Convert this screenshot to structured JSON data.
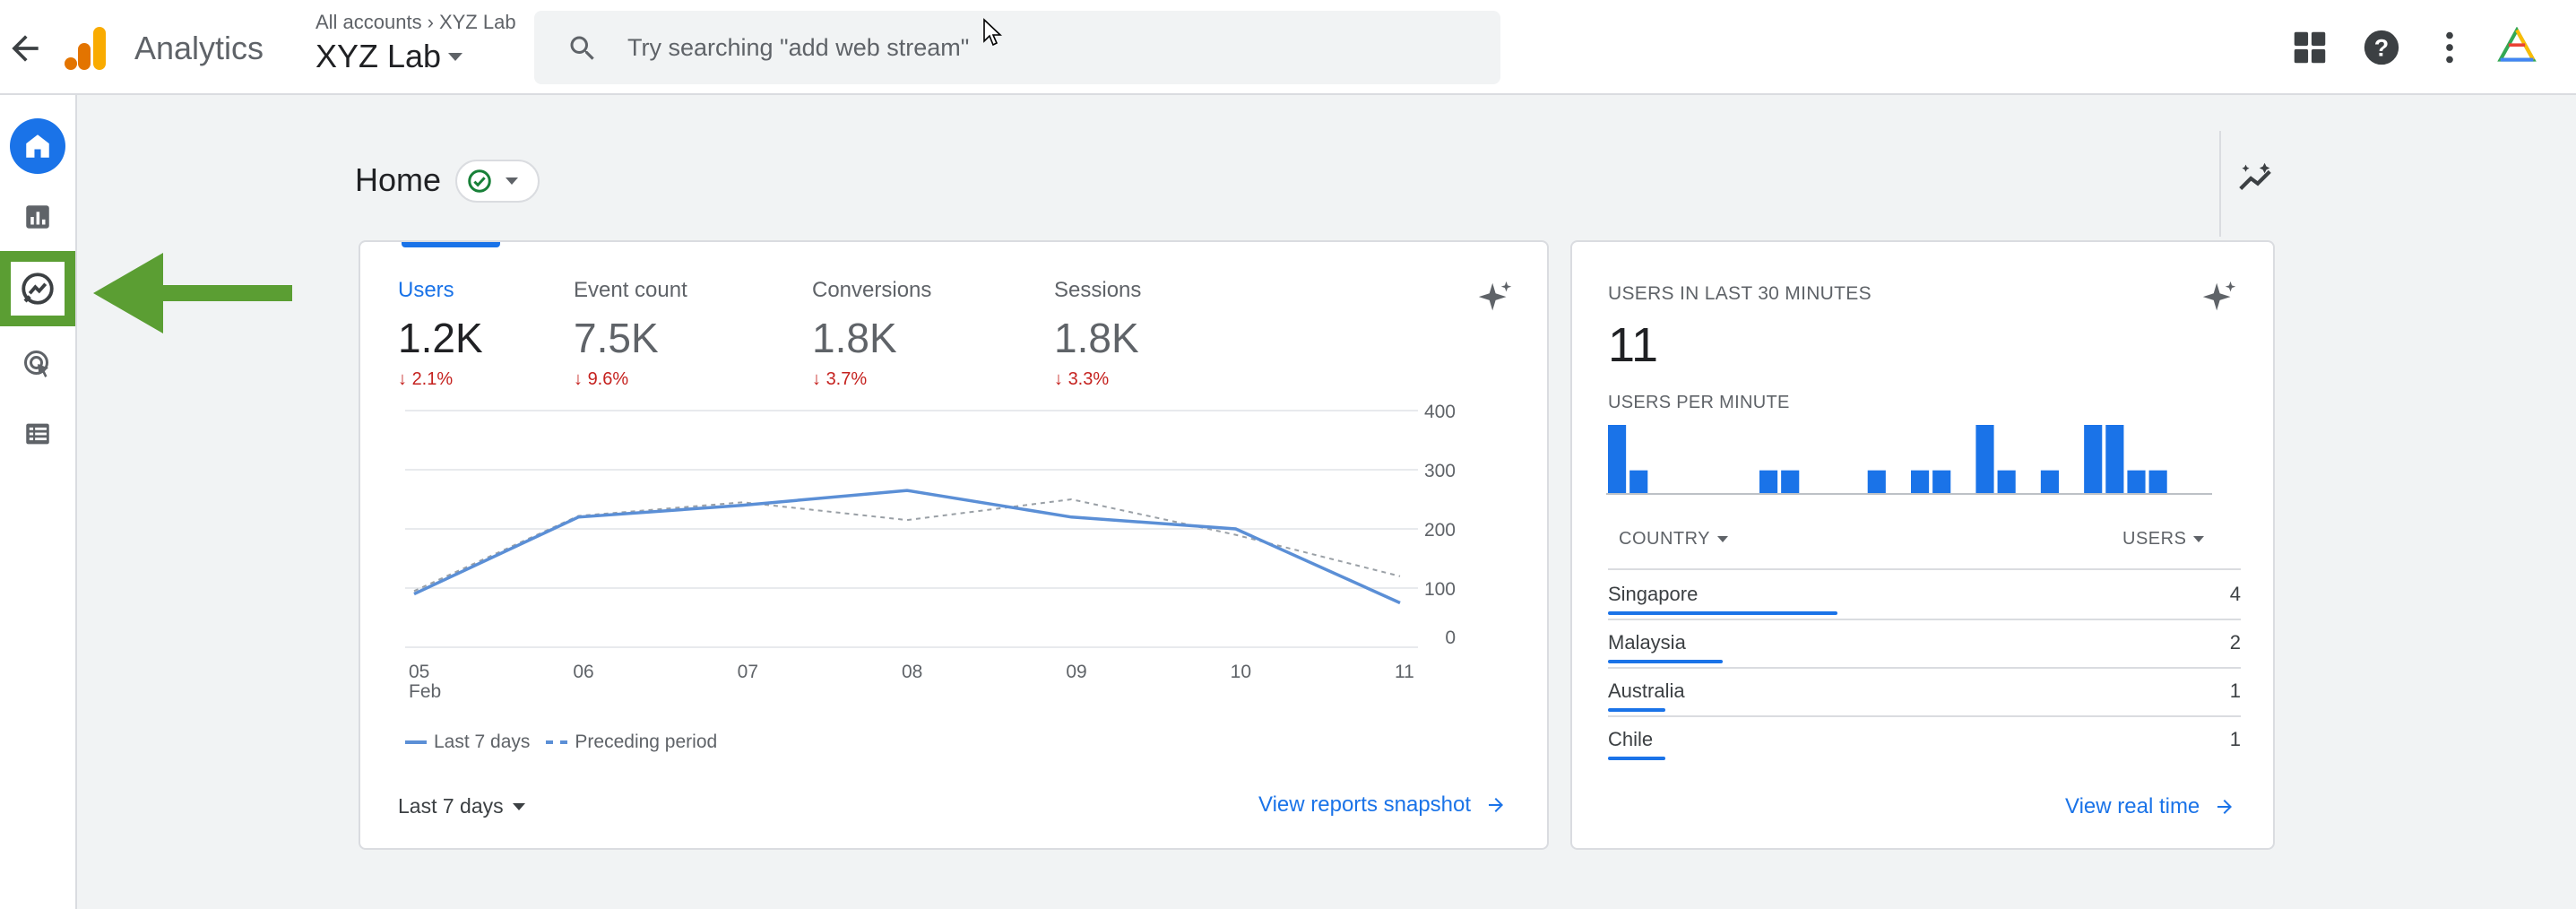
{
  "header": {
    "app_name": "Analytics",
    "breadcrumb": [
      "All accounts",
      "XYZ Lab"
    ],
    "property": "XYZ Lab",
    "search_placeholder": "Try searching \"add web stream\""
  },
  "sidebar": {
    "items": [
      "home-icon",
      "reports-icon",
      "explore-icon",
      "advertising-icon",
      "configure-icon"
    ],
    "highlighted": "explore-icon",
    "highlight_color": "#5b9e33"
  },
  "home": {
    "title": "Home"
  },
  "summary": {
    "metrics": [
      {
        "label": "Users",
        "value": "1.2K",
        "change": "2.1%"
      },
      {
        "label": "Event count",
        "value": "7.5K",
        "change": "9.6%"
      },
      {
        "label": "Conversions",
        "value": "1.8K",
        "change": "3.7%"
      },
      {
        "label": "Sessions",
        "value": "1.8K",
        "change": "3.3%"
      }
    ],
    "legend": [
      "Last 7 days",
      "Preceding period"
    ],
    "date_range": "Last 7 days",
    "link": "View reports snapshot"
  },
  "chart_data": {
    "type": "line",
    "x": [
      "05",
      "06",
      "07",
      "08",
      "09",
      "10",
      "11"
    ],
    "x_sub": [
      "Feb",
      "",
      "",
      "",
      "",
      "",
      ""
    ],
    "series": [
      {
        "name": "Last 7 days",
        "values": [
          90,
          220,
          240,
          265,
          220,
          200,
          75
        ]
      },
      {
        "name": "Preceding period",
        "values": [
          95,
          222,
          245,
          215,
          250,
          190,
          120
        ]
      }
    ],
    "y_ticks": [
      "0",
      "100",
      "200",
      "300",
      "400"
    ],
    "ylim": [
      0,
      400
    ],
    "grid": true,
    "legend_position": "bottom-left"
  },
  "realtime": {
    "title": "USERS IN LAST 30 MINUTES",
    "count": "11",
    "sub_title": "USERS PER MINUTE",
    "per_minute": [
      3,
      1,
      0,
      0,
      0,
      0,
      0,
      1,
      1,
      0,
      0,
      0,
      1,
      0,
      1,
      1,
      0,
      3,
      1,
      0,
      1,
      0,
      3,
      3,
      1,
      1,
      0,
      0
    ],
    "col_country": "COUNTRY",
    "col_users": "USERS",
    "rows": [
      {
        "country": "Singapore",
        "users": "4",
        "share": 1.0
      },
      {
        "country": "Malaysia",
        "users": "2",
        "share": 0.5
      },
      {
        "country": "Australia",
        "users": "1",
        "share": 0.25
      },
      {
        "country": "Chile",
        "users": "1",
        "share": 0.25
      }
    ],
    "link": "View real time"
  },
  "colors": {
    "accent": "#1a73e8",
    "line_primary": "#5b8fd6",
    "line_secondary": "#9aa0a6",
    "decline": "#c5221f"
  }
}
